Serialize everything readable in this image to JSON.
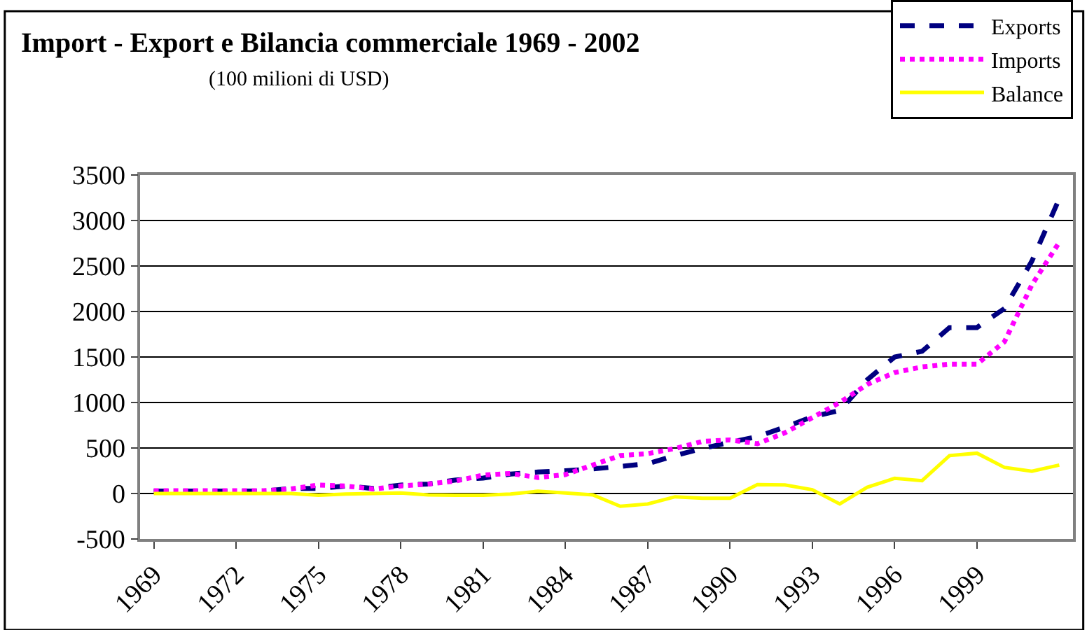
{
  "chart_data": {
    "type": "line",
    "title": "Import - Export e Bilancia commerciale 1969 - 2002",
    "subtitle": "(100 milioni di USD)",
    "x": [
      1969,
      1970,
      1971,
      1972,
      1973,
      1974,
      1975,
      1976,
      1977,
      1978,
      1979,
      1980,
      1981,
      1982,
      1983,
      1984,
      1985,
      1986,
      1987,
      1988,
      1989,
      1990,
      1991,
      1992,
      1993,
      1994,
      1995,
      1996,
      1997,
      1998,
      1999,
      2000,
      2001,
      2002
    ],
    "series": [
      {
        "name": "Exports",
        "color": "#000080",
        "line_style": "dashed",
        "values": [
          27,
          27,
          27,
          27,
          27,
          55,
          55,
          82,
          55,
          93,
          104,
          148,
          170,
          214,
          236,
          250,
          271,
          297,
          328,
          417,
          495,
          563,
          625,
          729,
          844,
          912,
          1250,
          1500,
          1563,
          1824,
          1824,
          2032,
          2553,
          3240
        ]
      },
      {
        "name": "Imports",
        "color": "#ff00ff",
        "line_style": "dotted",
        "values": [
          30,
          30,
          30,
          30,
          30,
          50,
          93,
          82,
          50,
          82,
          104,
          137,
          203,
          220,
          176,
          208,
          313,
          417,
          438,
          495,
          573,
          589,
          547,
          667,
          834,
          1000,
          1198,
          1329,
          1391,
          1422,
          1422,
          1667,
          2292,
          2761
        ]
      },
      {
        "name": "Balance",
        "color": "#ffff00",
        "line_style": "solid",
        "values": [
          0,
          0,
          0,
          0,
          0,
          0,
          -20,
          -5,
          0,
          5,
          -15,
          -20,
          -20,
          -5,
          25,
          5,
          -15,
          -140,
          -115,
          -36,
          -52,
          -52,
          99,
          94,
          42,
          -115,
          68,
          167,
          141,
          417,
          443,
          287,
          245,
          313
        ]
      }
    ],
    "xlim": [
      1968.5,
      2002.5
    ],
    "xticks": [
      1969,
      1972,
      1975,
      1978,
      1981,
      1984,
      1987,
      1990,
      1993,
      1996,
      1999
    ],
    "ylim": [
      -500,
      3500
    ],
    "yticks": [
      -500,
      0,
      500,
      1000,
      1500,
      2000,
      2500,
      3000,
      3500
    ],
    "grid": "y",
    "legend": "top right",
    "marker": "none"
  }
}
